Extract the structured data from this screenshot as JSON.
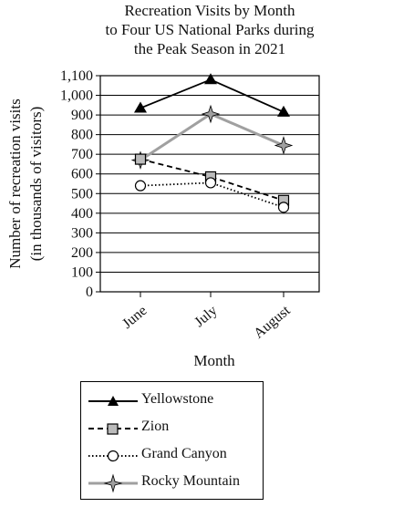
{
  "chart_data": {
    "type": "line",
    "title_lines": [
      "Recreation Visits by Month",
      "to Four US National Parks during",
      "the Peak Season in 2021"
    ],
    "xlabel": "Month",
    "ylabel_lines": [
      "Number of recreation visits",
      "(in thousands of visitors)"
    ],
    "categories": [
      "June",
      "July",
      "August"
    ],
    "ylim": [
      0,
      1100
    ],
    "yticks": [
      "0",
      "100",
      "200",
      "300",
      "400",
      "500",
      "600",
      "700",
      "800",
      "900",
      "1,000",
      "1,100"
    ],
    "grid": true,
    "series": [
      {
        "name": "Yellowstone",
        "values": [
          935,
          1080,
          915
        ],
        "marker": "triangle",
        "line": "solid",
        "color": "#000000"
      },
      {
        "name": "Zion",
        "values": [
          675,
          585,
          465
        ],
        "marker": "square",
        "line": "dashed",
        "color": "#000000"
      },
      {
        "name": "Grand Canyon",
        "values": [
          540,
          555,
          430
        ],
        "marker": "circle",
        "line": "dotted",
        "color": "#000000"
      },
      {
        "name": "Rocky Mountain",
        "values": [
          670,
          905,
          745
        ],
        "marker": "star",
        "line": "solid",
        "color": "#a0a0a0"
      }
    ],
    "legend_position": "bottom"
  }
}
